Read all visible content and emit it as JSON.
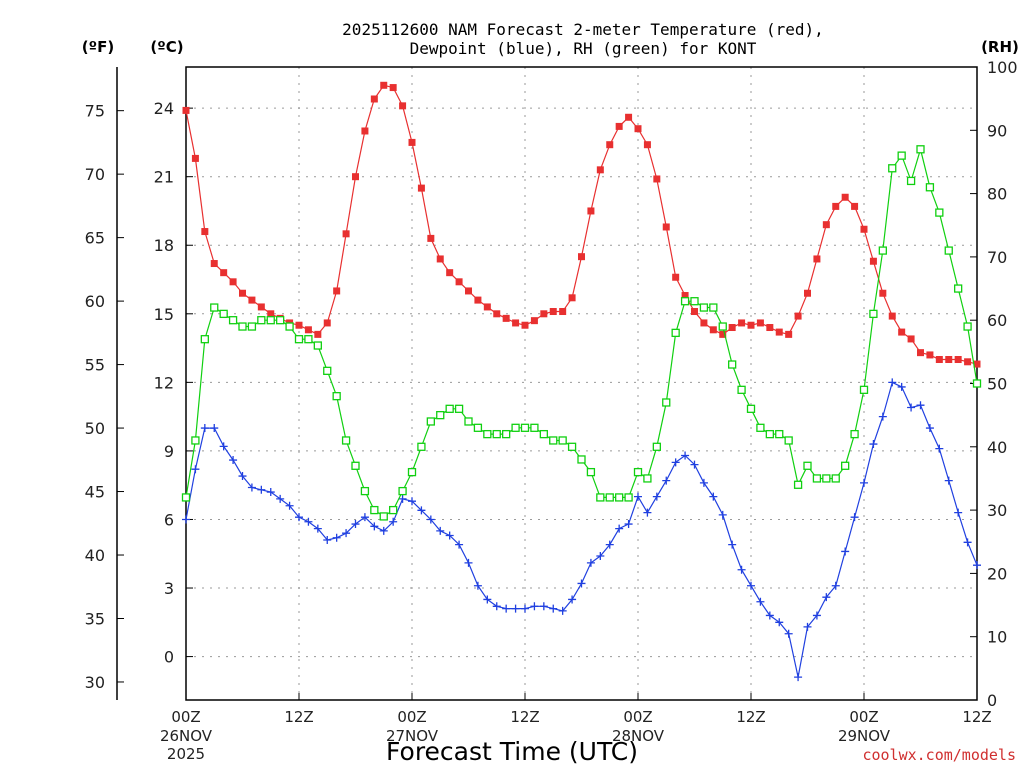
{
  "chart_data": {
    "type": "line",
    "title_line1": "2025112600 NAM Forecast 2-meter Temperature (red),",
    "title_line2": "Dewpoint (blue), RH (green) for KONT",
    "xlabel": "Forecast Time (UTC)",
    "credit": "coolwx.com/models",
    "units": {
      "fahrenheit": "(ºF)",
      "celsius": "(ºC)",
      "rh": "(RH)"
    },
    "x_range_hours": [
      0,
      84
    ],
    "celsius_range": [
      -1.9,
      25.8
    ],
    "rh_range": [
      0,
      100
    ],
    "fahrenheit_ticks": [
      "75",
      "70",
      "65",
      "60",
      "55",
      "50",
      "45",
      "40",
      "35",
      "30"
    ],
    "celsius_ticks": [
      "24",
      "21",
      "18",
      "15",
      "12",
      "9",
      "6",
      "3",
      "0"
    ],
    "rh_ticks": [
      "100",
      "90",
      "80",
      "70",
      "60",
      "50",
      "40",
      "30",
      "20",
      "10",
      "0"
    ],
    "x_ticks": [
      {
        "hour": 0,
        "label": "00Z",
        "sub1": "26NOV",
        "sub2": "2025"
      },
      {
        "hour": 12,
        "label": "12Z",
        "sub1": "",
        "sub2": ""
      },
      {
        "hour": 24,
        "label": "00Z",
        "sub1": "27NOV",
        "sub2": ""
      },
      {
        "hour": 36,
        "label": "12Z",
        "sub1": "",
        "sub2": ""
      },
      {
        "hour": 48,
        "label": "00Z",
        "sub1": "28NOV",
        "sub2": ""
      },
      {
        "hour": 60,
        "label": "12Z",
        "sub1": "",
        "sub2": ""
      },
      {
        "hour": 72,
        "label": "00Z",
        "sub1": "29NOV",
        "sub2": ""
      },
      {
        "hour": 84,
        "label": "12Z",
        "sub1": "",
        "sub2": ""
      }
    ],
    "colors": {
      "temperature": "#e83030",
      "dewpoint": "#2040e0",
      "rh": "#10d010"
    },
    "series": [
      {
        "name": "Temperature",
        "unit": "C",
        "values": [
          [
            0,
            23.9
          ],
          [
            1,
            21.8
          ],
          [
            2,
            18.6
          ],
          [
            3,
            17.2
          ],
          [
            4,
            16.8
          ],
          [
            5,
            16.4
          ],
          [
            6,
            15.9
          ],
          [
            7,
            15.6
          ],
          [
            8,
            15.3
          ],
          [
            9,
            15.0
          ],
          [
            10,
            14.8
          ],
          [
            11,
            14.6
          ],
          [
            12,
            14.5
          ],
          [
            13,
            14.3
          ],
          [
            14,
            14.1
          ],
          [
            15,
            14.6
          ],
          [
            16,
            16.0
          ],
          [
            17,
            18.5
          ],
          [
            18,
            21.0
          ],
          [
            19,
            23.0
          ],
          [
            20,
            24.4
          ],
          [
            21,
            25.0
          ],
          [
            22,
            24.9
          ],
          [
            23,
            24.1
          ],
          [
            24,
            22.5
          ],
          [
            25,
            20.5
          ],
          [
            26,
            18.3
          ],
          [
            27,
            17.4
          ],
          [
            28,
            16.8
          ],
          [
            29,
            16.4
          ],
          [
            30,
            16.0
          ],
          [
            31,
            15.6
          ],
          [
            32,
            15.3
          ],
          [
            33,
            15.0
          ],
          [
            34,
            14.8
          ],
          [
            35,
            14.6
          ],
          [
            36,
            14.5
          ],
          [
            37,
            14.7
          ],
          [
            38,
            15.0
          ],
          [
            39,
            15.1
          ],
          [
            40,
            15.1
          ],
          [
            41,
            15.7
          ],
          [
            42,
            17.5
          ],
          [
            43,
            19.5
          ],
          [
            44,
            21.3
          ],
          [
            45,
            22.4
          ],
          [
            46,
            23.2
          ],
          [
            47,
            23.6
          ],
          [
            48,
            23.1
          ],
          [
            49,
            22.4
          ],
          [
            50,
            20.9
          ],
          [
            51,
            18.8
          ],
          [
            52,
            16.6
          ],
          [
            53,
            15.8
          ],
          [
            54,
            15.1
          ],
          [
            55,
            14.6
          ],
          [
            56,
            14.3
          ],
          [
            57,
            14.1
          ],
          [
            58,
            14.4
          ],
          [
            59,
            14.6
          ],
          [
            60,
            14.5
          ],
          [
            61,
            14.6
          ],
          [
            62,
            14.4
          ],
          [
            63,
            14.2
          ],
          [
            64,
            14.1
          ],
          [
            65,
            14.9
          ],
          [
            66,
            15.9
          ],
          [
            67,
            17.4
          ],
          [
            68,
            18.9
          ],
          [
            69,
            19.7
          ],
          [
            70,
            20.1
          ],
          [
            71,
            19.7
          ],
          [
            72,
            18.7
          ],
          [
            73,
            17.3
          ],
          [
            74,
            15.9
          ],
          [
            75,
            14.9
          ],
          [
            76,
            14.2
          ],
          [
            77,
            13.9
          ],
          [
            78,
            13.3
          ],
          [
            79,
            13.2
          ],
          [
            80,
            13.0
          ],
          [
            81,
            13.0
          ],
          [
            82,
            13.0
          ],
          [
            83,
            12.9
          ],
          [
            84,
            12.8
          ]
        ]
      },
      {
        "name": "Dewpoint",
        "unit": "C",
        "values": [
          [
            0,
            6.0
          ],
          [
            1,
            8.2
          ],
          [
            2,
            10.0
          ],
          [
            3,
            10.0
          ],
          [
            4,
            9.2
          ],
          [
            5,
            8.6
          ],
          [
            6,
            7.9
          ],
          [
            7,
            7.4
          ],
          [
            8,
            7.3
          ],
          [
            9,
            7.2
          ],
          [
            10,
            6.9
          ],
          [
            11,
            6.6
          ],
          [
            12,
            6.1
          ],
          [
            13,
            5.9
          ],
          [
            14,
            5.6
          ],
          [
            15,
            5.1
          ],
          [
            16,
            5.2
          ],
          [
            17,
            5.4
          ],
          [
            18,
            5.8
          ],
          [
            19,
            6.1
          ],
          [
            20,
            5.7
          ],
          [
            21,
            5.5
          ],
          [
            22,
            5.9
          ],
          [
            23,
            6.9
          ],
          [
            24,
            6.8
          ],
          [
            25,
            6.4
          ],
          [
            26,
            6.0
          ],
          [
            27,
            5.5
          ],
          [
            28,
            5.3
          ],
          [
            29,
            4.9
          ],
          [
            30,
            4.1
          ],
          [
            31,
            3.1
          ],
          [
            32,
            2.5
          ],
          [
            33,
            2.2
          ],
          [
            34,
            2.1
          ],
          [
            35,
            2.1
          ],
          [
            36,
            2.1
          ],
          [
            37,
            2.2
          ],
          [
            38,
            2.2
          ],
          [
            39,
            2.1
          ],
          [
            40,
            2.0
          ],
          [
            41,
            2.5
          ],
          [
            42,
            3.2
          ],
          [
            43,
            4.1
          ],
          [
            44,
            4.4
          ],
          [
            45,
            4.9
          ],
          [
            46,
            5.6
          ],
          [
            47,
            5.8
          ],
          [
            48,
            7.0
          ],
          [
            49,
            6.3
          ],
          [
            50,
            7.0
          ],
          [
            51,
            7.7
          ],
          [
            52,
            8.5
          ],
          [
            53,
            8.8
          ],
          [
            54,
            8.4
          ],
          [
            55,
            7.6
          ],
          [
            56,
            7.0
          ],
          [
            57,
            6.2
          ],
          [
            58,
            4.9
          ],
          [
            59,
            3.8
          ],
          [
            60,
            3.1
          ],
          [
            61,
            2.4
          ],
          [
            62,
            1.8
          ],
          [
            63,
            1.5
          ],
          [
            64,
            1.0
          ],
          [
            65,
            -0.9
          ],
          [
            66,
            1.3
          ],
          [
            67,
            1.8
          ],
          [
            68,
            2.6
          ],
          [
            69,
            3.1
          ],
          [
            70,
            4.6
          ],
          [
            71,
            6.1
          ],
          [
            72,
            7.6
          ],
          [
            73,
            9.3
          ],
          [
            74,
            10.5
          ],
          [
            75,
            12.0
          ],
          [
            76,
            11.8
          ],
          [
            77,
            10.9
          ],
          [
            78,
            11.0
          ],
          [
            79,
            10.0
          ],
          [
            80,
            9.1
          ],
          [
            81,
            7.7
          ],
          [
            82,
            6.3
          ],
          [
            83,
            5.0
          ],
          [
            84,
            4.0
          ]
        ]
      },
      {
        "name": "RH",
        "unit": "%",
        "values": [
          [
            0,
            32
          ],
          [
            1,
            41
          ],
          [
            2,
            57
          ],
          [
            3,
            62
          ],
          [
            4,
            61
          ],
          [
            5,
            60
          ],
          [
            6,
            59
          ],
          [
            7,
            59
          ],
          [
            8,
            60
          ],
          [
            9,
            60
          ],
          [
            10,
            60
          ],
          [
            11,
            59
          ],
          [
            12,
            57
          ],
          [
            13,
            57
          ],
          [
            14,
            56
          ],
          [
            15,
            52
          ],
          [
            16,
            48
          ],
          [
            17,
            41
          ],
          [
            18,
            37
          ],
          [
            19,
            33
          ],
          [
            20,
            30
          ],
          [
            21,
            29
          ],
          [
            22,
            30
          ],
          [
            23,
            33
          ],
          [
            24,
            36
          ],
          [
            25,
            40
          ],
          [
            26,
            44
          ],
          [
            27,
            45
          ],
          [
            28,
            46
          ],
          [
            29,
            46
          ],
          [
            30,
            44
          ],
          [
            31,
            43
          ],
          [
            32,
            42
          ],
          [
            33,
            42
          ],
          [
            34,
            42
          ],
          [
            35,
            43
          ],
          [
            36,
            43
          ],
          [
            37,
            43
          ],
          [
            38,
            42
          ],
          [
            39,
            41
          ],
          [
            40,
            41
          ],
          [
            41,
            40
          ],
          [
            42,
            38
          ],
          [
            43,
            36
          ],
          [
            44,
            32
          ],
          [
            45,
            32
          ],
          [
            46,
            32
          ],
          [
            47,
            32
          ],
          [
            48,
            36
          ],
          [
            49,
            35
          ],
          [
            50,
            40
          ],
          [
            51,
            47
          ],
          [
            52,
            58
          ],
          [
            53,
            63
          ],
          [
            54,
            63
          ],
          [
            55,
            62
          ],
          [
            56,
            62
          ],
          [
            57,
            59
          ],
          [
            58,
            53
          ],
          [
            59,
            49
          ],
          [
            60,
            46
          ],
          [
            61,
            43
          ],
          [
            62,
            42
          ],
          [
            63,
            42
          ],
          [
            64,
            41
          ],
          [
            65,
            34
          ],
          [
            66,
            37
          ],
          [
            67,
            35
          ],
          [
            68,
            35
          ],
          [
            69,
            35
          ],
          [
            70,
            37
          ],
          [
            71,
            42
          ],
          [
            72,
            49
          ],
          [
            73,
            61
          ],
          [
            74,
            71
          ],
          [
            75,
            84
          ],
          [
            76,
            86
          ],
          [
            77,
            82
          ],
          [
            78,
            87
          ],
          [
            79,
            81
          ],
          [
            80,
            77
          ],
          [
            81,
            71
          ],
          [
            82,
            65
          ],
          [
            83,
            59
          ],
          [
            84,
            50
          ]
        ]
      }
    ]
  }
}
